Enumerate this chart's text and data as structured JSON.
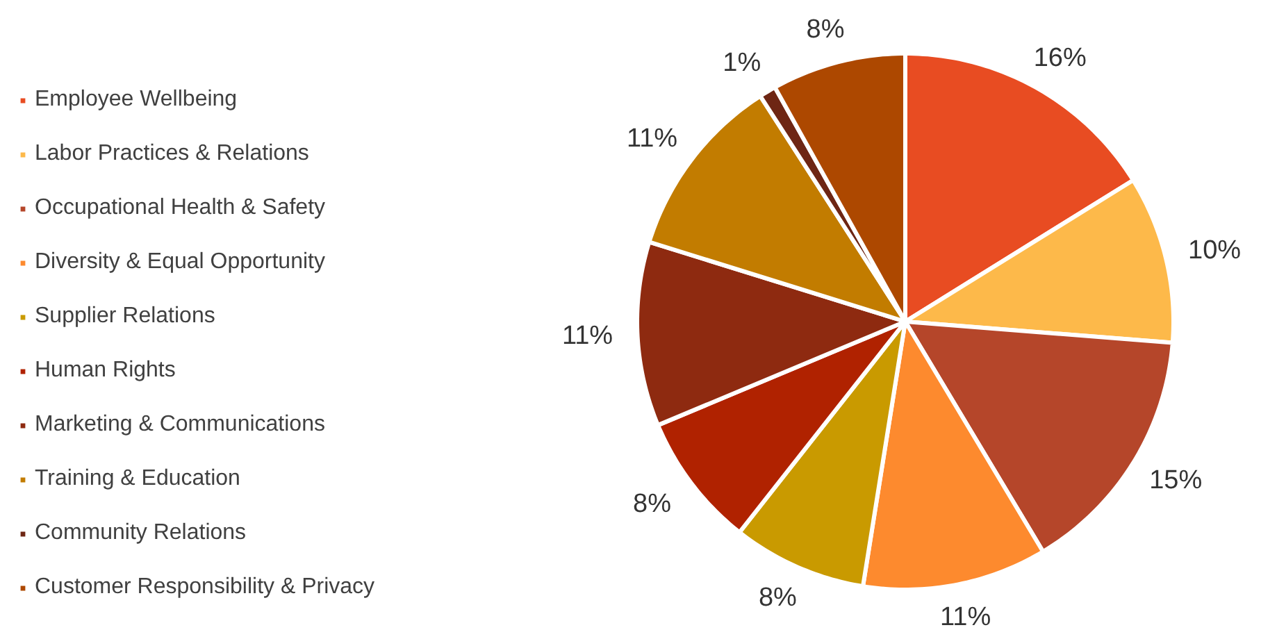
{
  "chart_data": {
    "type": "pie",
    "categories": [
      "Employee Wellbeing",
      "Labor Practices & Relations",
      "Occupational Health & Safety",
      "Diversity & Equal Opportunity",
      "Supplier Relations",
      "Human Rights",
      "Marketing & Communications",
      "Training & Education",
      "Community Relations",
      "Customer Responsibility & Privacy"
    ],
    "values": [
      16,
      10,
      15,
      11,
      8,
      8,
      11,
      11,
      1,
      8
    ],
    "value_labels": [
      "16%",
      "10%",
      "15%",
      "11%",
      "8%",
      "8%",
      "11%",
      "11%",
      "1%",
      "8%"
    ],
    "colors": [
      "#e84c22",
      "#fdb94a",
      "#b5462a",
      "#fd8a2e",
      "#c99a00",
      "#b02200",
      "#8e2a10",
      "#c27c00",
      "#6e2614",
      "#ad4800"
    ],
    "legend": "left"
  }
}
